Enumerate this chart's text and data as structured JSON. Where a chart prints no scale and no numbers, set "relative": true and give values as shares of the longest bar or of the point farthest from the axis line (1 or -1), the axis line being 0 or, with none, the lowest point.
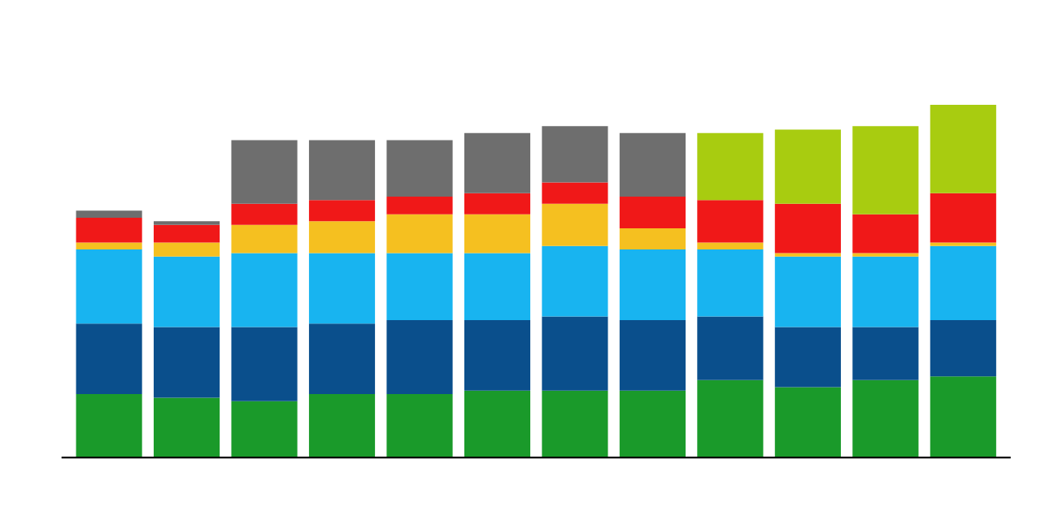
{
  "chart_data": {
    "type": "bar",
    "stacked": true,
    "relative": true,
    "categories": [
      null,
      null,
      null,
      null,
      null,
      null,
      null,
      null,
      null,
      null,
      null,
      null
    ],
    "series": [
      {
        "color": "#1a9a2a",
        "values": [
          0.18,
          0.17,
          0.16,
          0.18,
          0.18,
          0.19,
          0.19,
          0.19,
          0.22,
          0.2,
          0.22,
          0.23
        ]
      },
      {
        "color": "#0a4f8c",
        "values": [
          0.2,
          0.2,
          0.21,
          0.2,
          0.21,
          0.2,
          0.21,
          0.2,
          0.18,
          0.17,
          0.15,
          0.16
        ]
      },
      {
        "color": "#18b4f0",
        "values": [
          0.21,
          0.2,
          0.21,
          0.2,
          0.19,
          0.19,
          0.2,
          0.2,
          0.19,
          0.2,
          0.2,
          0.21
        ]
      },
      {
        "color": "#f5c020",
        "values": [
          0.02,
          0.04,
          0.08,
          0.09,
          0.11,
          0.11,
          0.12,
          0.06,
          0.02,
          0.01,
          0.01,
          0.01
        ]
      },
      {
        "color": "#f01818",
        "values": [
          0.07,
          0.05,
          0.06,
          0.06,
          0.05,
          0.06,
          0.06,
          0.09,
          0.12,
          0.14,
          0.11,
          0.14
        ]
      },
      {
        "color": "#6e6e6e",
        "values": [
          0.02,
          0.01,
          0.18,
          0.17,
          0.16,
          0.17,
          0.16,
          0.18,
          null,
          null,
          null,
          null
        ]
      },
      {
        "color": "#a8cc10",
        "values": [
          null,
          null,
          null,
          null,
          null,
          null,
          null,
          null,
          0.19,
          0.21,
          0.25,
          0.25
        ]
      }
    ]
  }
}
